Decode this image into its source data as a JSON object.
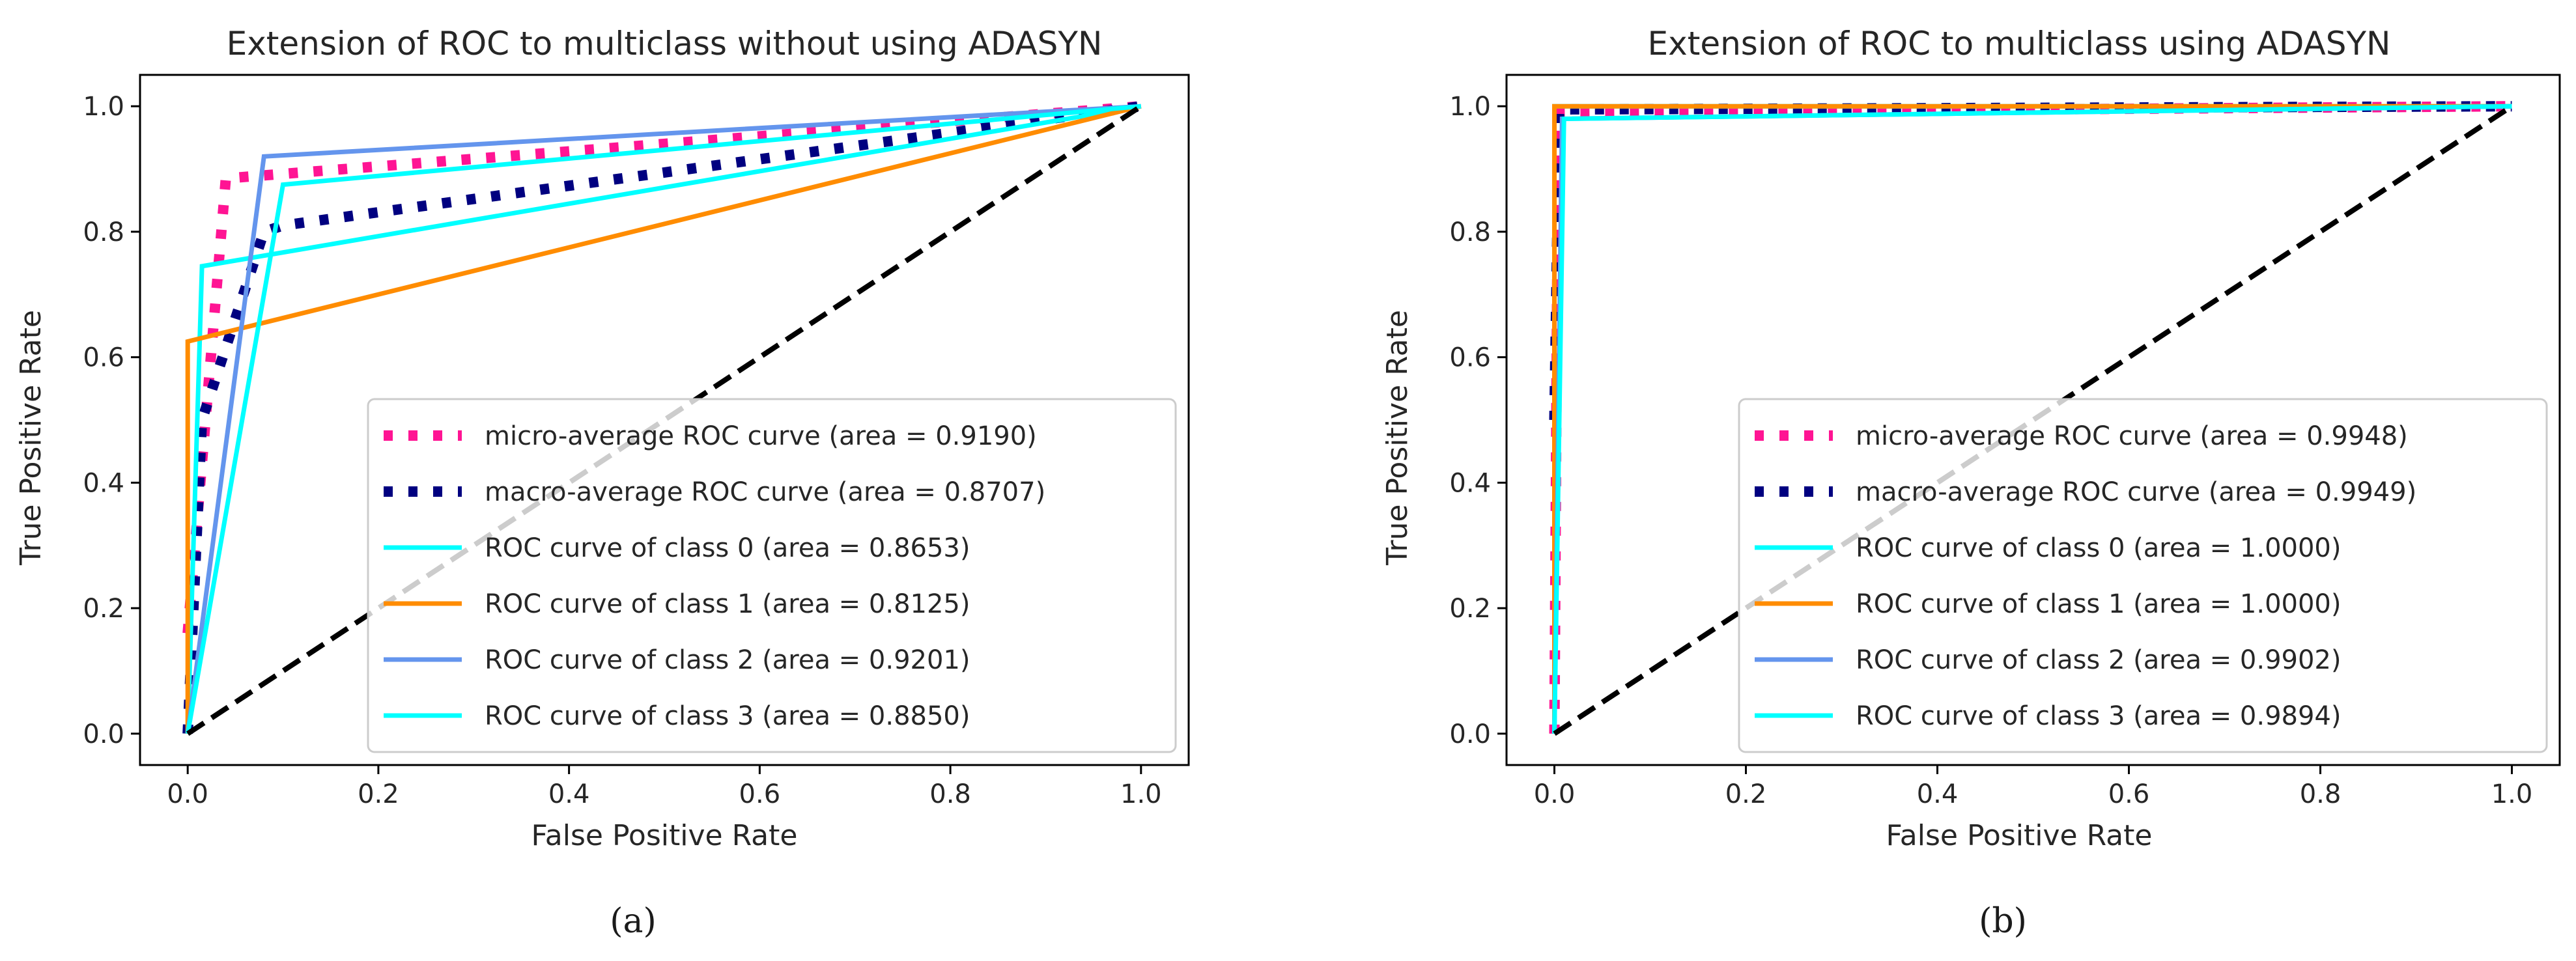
{
  "chart_data": [
    {
      "type": "line",
      "title": "Extension of ROC to multiclass without using ADASYN",
      "xlabel": "False Positive Rate",
      "ylabel": "True Positive Rate",
      "xlim": [
        -0.05,
        1.05
      ],
      "ylim": [
        -0.05,
        1.05
      ],
      "xticks": [
        "0.0",
        "0.2",
        "0.4",
        "0.6",
        "0.8",
        "1.0"
      ],
      "yticks": [
        "0.0",
        "0.2",
        "0.4",
        "0.6",
        "0.8",
        "1.0"
      ],
      "grid": false,
      "legend_position": "lower right",
      "caption": "(a)",
      "series": [
        {
          "name": "micro-average ROC curve (area = 0.9190)",
          "color": "#ff1493",
          "style": "dotted",
          "x": [
            0,
            0.04,
            1
          ],
          "y": [
            0.16,
            0.885,
            1
          ]
        },
        {
          "name": "macro-average ROC curve (area = 0.8707)",
          "color": "#000080",
          "style": "dotted",
          "x": [
            0,
            0.015,
            0.08,
            0.1,
            1
          ],
          "y": [
            0.0,
            0.5,
            0.8,
            0.81,
            1
          ]
        },
        {
          "name": "ROC curve of class 0 (area = 0.8653)",
          "color": "#00ffff",
          "style": "solid",
          "x": [
            0,
            0.015,
            1
          ],
          "y": [
            0,
            0.745,
            1
          ]
        },
        {
          "name": "ROC curve of class 1 (area = 0.8125)",
          "color": "#ff8c00",
          "style": "solid",
          "x": [
            0,
            0,
            1
          ],
          "y": [
            0,
            0.625,
            1
          ]
        },
        {
          "name": "ROC curve of class 2 (area = 0.9201)",
          "color": "#6495ed",
          "style": "solid",
          "x": [
            0,
            0.08,
            1
          ],
          "y": [
            0,
            0.92,
            1
          ]
        },
        {
          "name": "ROC curve of class 3 (area = 0.8850)",
          "color": "#00ffff",
          "style": "solid",
          "x": [
            0,
            0.1,
            1
          ],
          "y": [
            0,
            0.875,
            1
          ]
        },
        {
          "name": "",
          "color": "#000000",
          "style": "dashed",
          "x": [
            0,
            1
          ],
          "y": [
            0,
            1
          ]
        }
      ]
    },
    {
      "type": "line",
      "title": "Extension of ROC to multiclass using ADASYN",
      "xlabel": "False Positive Rate",
      "ylabel": "True Positive Rate",
      "xlim": [
        -0.05,
        1.05
      ],
      "ylim": [
        -0.05,
        1.05
      ],
      "xticks": [
        "0.0",
        "0.2",
        "0.4",
        "0.6",
        "0.8",
        "1.0"
      ],
      "yticks": [
        "0.0",
        "0.2",
        "0.4",
        "0.6",
        "0.8",
        "1.0"
      ],
      "grid": false,
      "legend_position": "lower right",
      "caption": "(b)",
      "series": [
        {
          "name": "micro-average ROC curve (area = 0.9948)",
          "color": "#ff1493",
          "style": "dotted",
          "x": [
            0,
            0.004,
            1
          ],
          "y": [
            0.0,
            0.99,
            1
          ]
        },
        {
          "name": "macro-average ROC curve (area = 0.9949)",
          "color": "#000080",
          "style": "dotted",
          "x": [
            0,
            0.005,
            1
          ],
          "y": [
            0.5,
            0.995,
            1
          ]
        },
        {
          "name": "ROC curve of class 0 (area = 1.0000)",
          "color": "#00ffff",
          "style": "solid",
          "x": [
            0,
            0,
            1
          ],
          "y": [
            0,
            1,
            1
          ]
        },
        {
          "name": "ROC curve of class 1 (area = 1.0000)",
          "color": "#ff8c00",
          "style": "solid",
          "x": [
            0,
            0,
            1
          ],
          "y": [
            0,
            1,
            1
          ]
        },
        {
          "name": "ROC curve of class 2 (area = 0.9902)",
          "color": "#6495ed",
          "style": "solid",
          "x": [
            0,
            0.008,
            1
          ],
          "y": [
            0,
            0.98,
            1
          ]
        },
        {
          "name": "ROC curve of class 3 (area = 0.9894)",
          "color": "#00ffff",
          "style": "solid",
          "x": [
            0,
            0.01,
            1
          ],
          "y": [
            0,
            0.98,
            1
          ]
        },
        {
          "name": "",
          "color": "#000000",
          "style": "dashed",
          "x": [
            0,
            1
          ],
          "y": [
            0,
            1
          ]
        }
      ]
    }
  ]
}
